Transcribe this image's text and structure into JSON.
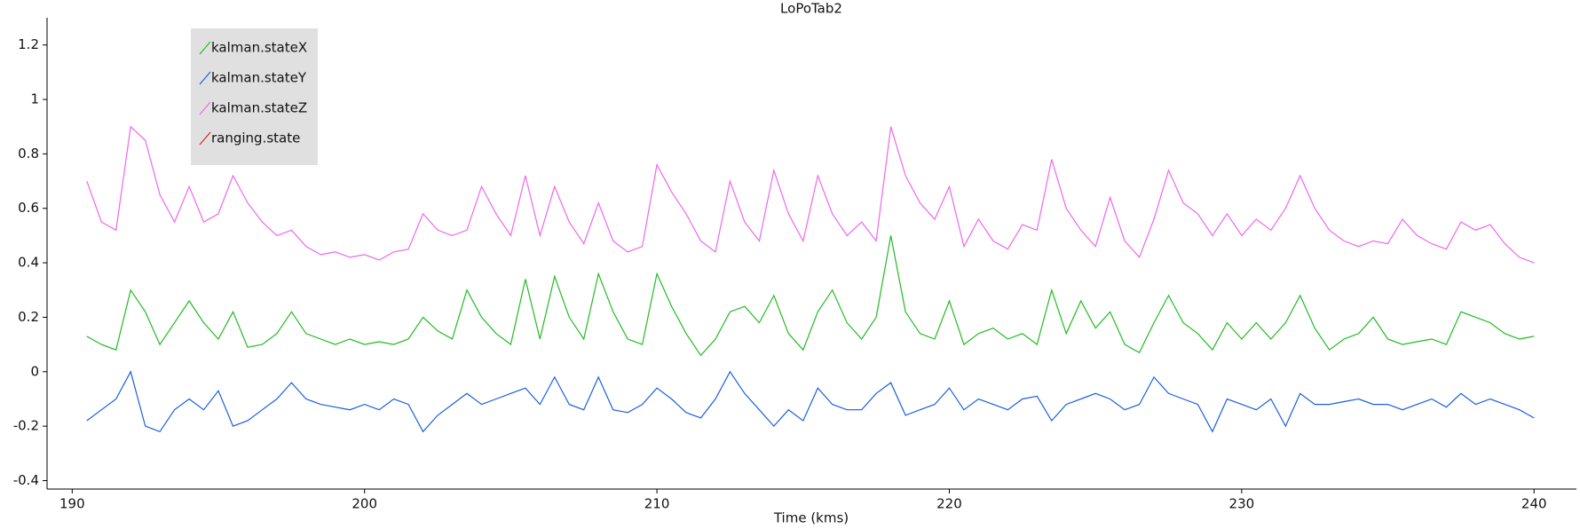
{
  "chart_data": {
    "type": "line",
    "title": "LoPoTab2",
    "x_label": "Time (kms)",
    "xlim": [
      189.14,
      241.45
    ],
    "xticks": [
      190,
      200,
      210,
      220,
      230,
      240
    ],
    "ylim": [
      -0.431,
      1.3
    ],
    "yticks": [
      -0.4,
      -0.2,
      0,
      0.2,
      0.4,
      0.6,
      0.8,
      1,
      1.2
    ],
    "legend": "upper left",
    "x": [
      190.5,
      191,
      191.5,
      192,
      192.5,
      193,
      193.5,
      194,
      194.5,
      195,
      195.5,
      196,
      196.5,
      197,
      197.5,
      198,
      198.5,
      199,
      199.5,
      200,
      200.5,
      201,
      201.5,
      202,
      202.5,
      203,
      203.5,
      204,
      204.5,
      205,
      205.5,
      206,
      206.5,
      207,
      207.5,
      208,
      208.5,
      209,
      209.5,
      210,
      210.5,
      211,
      211.5,
      212,
      212.5,
      213,
      213.5,
      214,
      214.5,
      215,
      215.5,
      216,
      216.5,
      217,
      217.5,
      218,
      218.5,
      219,
      219.5,
      220,
      220.5,
      221,
      221.5,
      222,
      222.5,
      223,
      223.5,
      224,
      224.5,
      225,
      225.5,
      226,
      226.5,
      227,
      227.5,
      228,
      228.5,
      229,
      229.5,
      230,
      230.5,
      231,
      231.5,
      232,
      232.5,
      233,
      233.5,
      234,
      234.5,
      235,
      235.5,
      236,
      236.5,
      237,
      237.5,
      238,
      238.5,
      239,
      239.5,
      240
    ],
    "series": [
      {
        "name": "kalman.stateX",
        "color": "#22bb22",
        "values": [
          0.13,
          0.1,
          0.08,
          0.3,
          0.22,
          0.1,
          0.18,
          0.26,
          0.18,
          0.12,
          0.22,
          0.09,
          0.1,
          0.14,
          0.22,
          0.14,
          0.12,
          0.1,
          0.12,
          0.1,
          0.11,
          0.1,
          0.12,
          0.2,
          0.15,
          0.12,
          0.3,
          0.2,
          0.14,
          0.1,
          0.34,
          0.12,
          0.35,
          0.2,
          0.12,
          0.36,
          0.22,
          0.12,
          0.1,
          0.36,
          0.24,
          0.14,
          0.06,
          0.12,
          0.22,
          0.24,
          0.18,
          0.28,
          0.14,
          0.08,
          0.22,
          0.3,
          0.18,
          0.12,
          0.2,
          0.5,
          0.22,
          0.14,
          0.12,
          0.26,
          0.1,
          0.14,
          0.16,
          0.12,
          0.14,
          0.1,
          0.3,
          0.14,
          0.26,
          0.16,
          0.22,
          0.1,
          0.07,
          0.18,
          0.28,
          0.18,
          0.14,
          0.08,
          0.18,
          0.12,
          0.18,
          0.12,
          0.18,
          0.28,
          0.16,
          0.08,
          0.12,
          0.14,
          0.2,
          0.12,
          0.1,
          0.11,
          0.12,
          0.1,
          0.22,
          0.2,
          0.18,
          0.14,
          0.12,
          0.13
        ]
      },
      {
        "name": "kalman.stateY",
        "color": "#1a5fe0",
        "values": [
          -0.18,
          -0.14,
          -0.1,
          0.0,
          -0.2,
          -0.22,
          -0.14,
          -0.1,
          -0.14,
          -0.07,
          -0.2,
          -0.18,
          -0.14,
          -0.1,
          -0.04,
          -0.1,
          -0.12,
          -0.13,
          -0.14,
          -0.12,
          -0.14,
          -0.1,
          -0.12,
          -0.22,
          -0.16,
          -0.12,
          -0.08,
          -0.12,
          -0.1,
          -0.08,
          -0.06,
          -0.12,
          -0.02,
          -0.12,
          -0.14,
          -0.02,
          -0.14,
          -0.15,
          -0.12,
          -0.06,
          -0.1,
          -0.15,
          -0.17,
          -0.1,
          0.0,
          -0.08,
          -0.14,
          -0.2,
          -0.14,
          -0.18,
          -0.06,
          -0.12,
          -0.14,
          -0.14,
          -0.08,
          -0.04,
          -0.16,
          -0.14,
          -0.12,
          -0.06,
          -0.14,
          -0.1,
          -0.12,
          -0.14,
          -0.1,
          -0.09,
          -0.18,
          -0.12,
          -0.1,
          -0.08,
          -0.1,
          -0.14,
          -0.12,
          -0.02,
          -0.08,
          -0.1,
          -0.12,
          -0.22,
          -0.1,
          -0.12,
          -0.14,
          -0.1,
          -0.2,
          -0.08,
          -0.12,
          -0.12,
          -0.11,
          -0.1,
          -0.12,
          -0.12,
          -0.14,
          -0.12,
          -0.1,
          -0.13,
          -0.08,
          -0.12,
          -0.1,
          -0.12,
          -0.14,
          -0.17
        ]
      },
      {
        "name": "kalman.stateZ",
        "color": "#ee66ee",
        "values": [
          0.7,
          0.55,
          0.52,
          0.9,
          0.85,
          0.65,
          0.55,
          0.68,
          0.55,
          0.58,
          0.72,
          0.62,
          0.55,
          0.5,
          0.52,
          0.46,
          0.43,
          0.44,
          0.42,
          0.43,
          0.41,
          0.44,
          0.45,
          0.58,
          0.52,
          0.5,
          0.52,
          0.68,
          0.58,
          0.5,
          0.72,
          0.5,
          0.68,
          0.55,
          0.47,
          0.62,
          0.48,
          0.44,
          0.46,
          0.76,
          0.66,
          0.58,
          0.48,
          0.44,
          0.7,
          0.55,
          0.48,
          0.74,
          0.58,
          0.48,
          0.72,
          0.58,
          0.5,
          0.55,
          0.48,
          0.9,
          0.72,
          0.62,
          0.56,
          0.68,
          0.46,
          0.56,
          0.48,
          0.45,
          0.54,
          0.52,
          0.78,
          0.6,
          0.52,
          0.46,
          0.64,
          0.48,
          0.42,
          0.56,
          0.74,
          0.62,
          0.58,
          0.5,
          0.58,
          0.5,
          0.56,
          0.52,
          0.6,
          0.72,
          0.6,
          0.52,
          0.48,
          0.46,
          0.48,
          0.47,
          0.56,
          0.5,
          0.47,
          0.45,
          0.55,
          0.52,
          0.54,
          0.47,
          0.42,
          0.4
        ]
      },
      {
        "name": "ranging.state",
        "color": "#dd2222",
        "values": [
          null,
          null,
          null,
          null,
          null,
          null,
          null,
          null,
          null,
          null,
          null,
          null,
          null,
          null,
          null,
          null,
          null,
          null,
          null,
          null,
          null,
          null,
          null,
          null,
          null,
          null,
          null,
          null,
          null,
          null,
          null,
          null,
          null,
          null,
          null,
          null,
          null,
          null,
          null,
          null,
          null,
          null,
          null,
          null,
          null,
          null,
          null,
          null,
          null,
          null,
          null,
          null,
          null,
          null,
          null,
          null,
          null,
          null,
          null,
          null,
          null,
          null,
          null,
          null,
          null,
          null,
          null,
          null,
          null,
          null,
          null,
          null,
          null,
          null,
          null,
          null,
          null,
          null,
          null,
          null,
          null,
          null,
          null,
          null,
          null,
          null,
          null,
          null,
          null,
          null,
          null,
          null,
          null,
          null,
          null,
          null,
          null,
          null,
          null,
          null
        ]
      }
    ]
  }
}
